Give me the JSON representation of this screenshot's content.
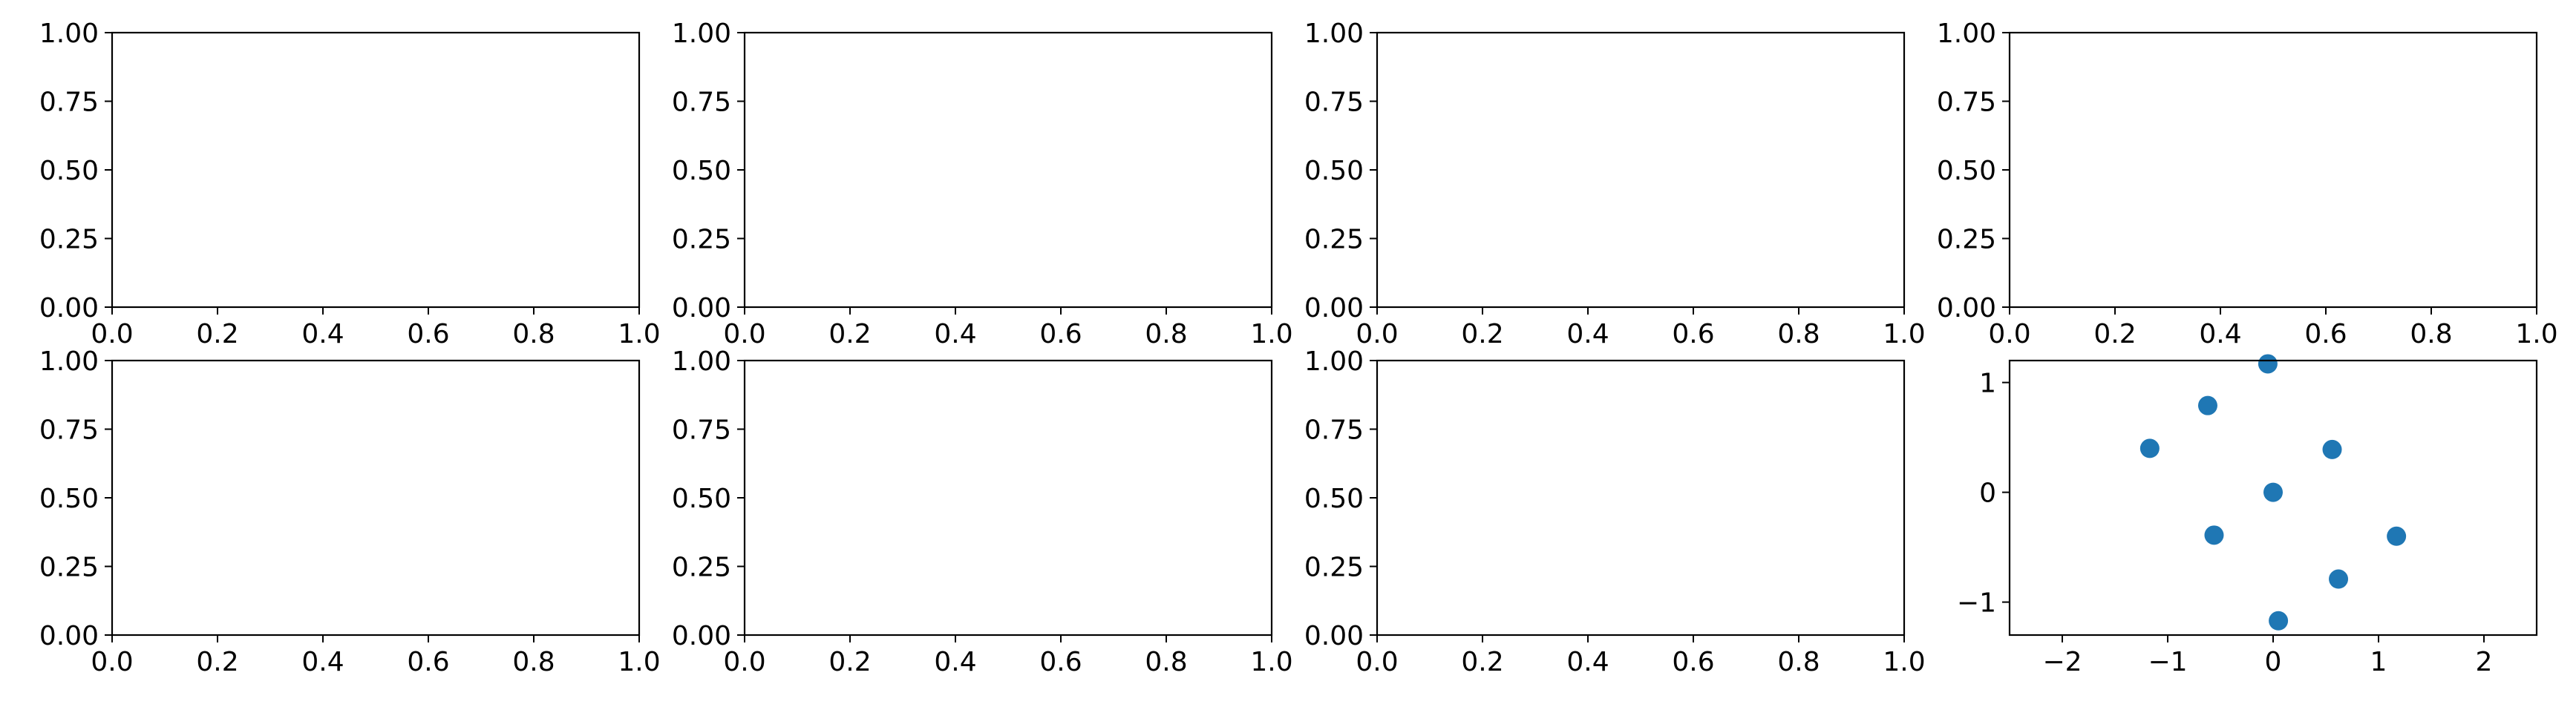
{
  "figure": {
    "background": "#ffffff",
    "layout": "2 rows x 4 columns of subplots"
  },
  "chart_data": [
    {
      "type": "scatter",
      "row": 1,
      "col": 1,
      "xlim": [
        0,
        1
      ],
      "ylim": [
        0,
        1
      ],
      "xticks": [
        "0.0",
        "0.2",
        "0.4",
        "0.6",
        "0.8",
        "1.0"
      ],
      "yticks": [
        "0.00",
        "0.25",
        "0.50",
        "0.75",
        "1.00"
      ],
      "series": [],
      "grid": false
    },
    {
      "type": "scatter",
      "row": 1,
      "col": 2,
      "xlim": [
        0,
        1
      ],
      "ylim": [
        0,
        1
      ],
      "xticks": [
        "0.0",
        "0.2",
        "0.4",
        "0.6",
        "0.8",
        "1.0"
      ],
      "yticks": [
        "0.00",
        "0.25",
        "0.50",
        "0.75",
        "1.00"
      ],
      "series": [],
      "grid": false
    },
    {
      "type": "scatter",
      "row": 1,
      "col": 3,
      "xlim": [
        0,
        1
      ],
      "ylim": [
        0,
        1
      ],
      "xticks": [
        "0.0",
        "0.2",
        "0.4",
        "0.6",
        "0.8",
        "1.0"
      ],
      "yticks": [
        "0.00",
        "0.25",
        "0.50",
        "0.75",
        "1.00"
      ],
      "series": [],
      "grid": false
    },
    {
      "type": "scatter",
      "row": 1,
      "col": 4,
      "xlim": [
        0,
        1
      ],
      "ylim": [
        0,
        1
      ],
      "xticks": [
        "0.0",
        "0.2",
        "0.4",
        "0.6",
        "0.8",
        "1.0"
      ],
      "yticks": [
        "0.00",
        "0.25",
        "0.50",
        "0.75",
        "1.00"
      ],
      "series": [],
      "grid": false
    },
    {
      "type": "scatter",
      "row": 2,
      "col": 1,
      "xlim": [
        0,
        1
      ],
      "ylim": [
        0,
        1
      ],
      "xticks": [
        "0.0",
        "0.2",
        "0.4",
        "0.6",
        "0.8",
        "1.0"
      ],
      "yticks": [
        "0.00",
        "0.25",
        "0.50",
        "0.75",
        "1.00"
      ],
      "series": [],
      "grid": false
    },
    {
      "type": "scatter",
      "row": 2,
      "col": 2,
      "xlim": [
        0,
        1
      ],
      "ylim": [
        0,
        1
      ],
      "xticks": [
        "0.0",
        "0.2",
        "0.4",
        "0.6",
        "0.8",
        "1.0"
      ],
      "yticks": [
        "0.00",
        "0.25",
        "0.50",
        "0.75",
        "1.00"
      ],
      "series": [],
      "grid": false
    },
    {
      "type": "scatter",
      "row": 2,
      "col": 3,
      "xlim": [
        0,
        1
      ],
      "ylim": [
        0,
        1
      ],
      "xticks": [
        "0.0",
        "0.2",
        "0.4",
        "0.6",
        "0.8",
        "1.0"
      ],
      "yticks": [
        "0.00",
        "0.25",
        "0.50",
        "0.75",
        "1.00"
      ],
      "series": [],
      "grid": false
    },
    {
      "type": "scatter",
      "row": 2,
      "col": 4,
      "xlim": [
        -2.5,
        2.5
      ],
      "ylim": [
        -1.3,
        1.2
      ],
      "xticks": [
        "−2",
        "−1",
        "0",
        "1",
        "2"
      ],
      "yticks": [
        "−1",
        "0",
        "1"
      ],
      "grid": false,
      "series": [
        {
          "color": "#1f77b4",
          "points": [
            {
              "x": -0.05,
              "y": 1.17
            },
            {
              "x": -0.62,
              "y": 0.79
            },
            {
              "x": -1.17,
              "y": 0.4
            },
            {
              "x": 0.56,
              "y": 0.39
            },
            {
              "x": 0.0,
              "y": 0.0
            },
            {
              "x": -0.56,
              "y": -0.39
            },
            {
              "x": 1.17,
              "y": -0.4
            },
            {
              "x": 0.62,
              "y": -0.79
            },
            {
              "x": 0.05,
              "y": -1.17
            }
          ]
        }
      ]
    }
  ]
}
